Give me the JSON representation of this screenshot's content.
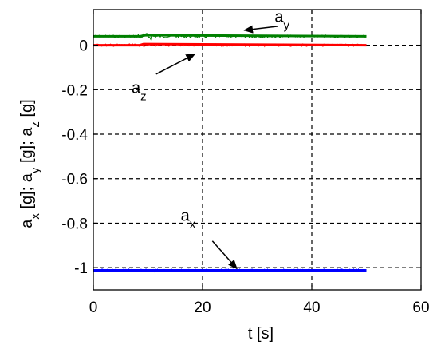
{
  "chart_data": {
    "type": "line",
    "title": "",
    "xlabel": "t [s]",
    "ylabel": {
      "parts": [
        {
          "base": "a",
          "sub": "x",
          "unit": " [g];  "
        },
        {
          "base": "a",
          "sub": "y",
          "unit": " [g];  "
        },
        {
          "base": "a",
          "sub": "z",
          "unit": " [g]"
        }
      ]
    },
    "xlim": [
      0,
      60
    ],
    "ylim": [
      -1.1,
      0.16
    ],
    "xticks": [
      0,
      20,
      40,
      60
    ],
    "yticks": [
      -1,
      -0.8,
      -0.6,
      -0.4,
      -0.2,
      0
    ],
    "xtick_labels": [
      "0",
      "20",
      "40",
      "60"
    ],
    "ytick_labels": [
      "-1",
      "-0.8",
      "-0.6",
      "-0.4",
      "-0.2",
      "0"
    ],
    "grid": true,
    "grid_style": "dashed",
    "series": [
      {
        "id": "ay",
        "color": "#008000",
        "x": [
          0,
          8.5,
          9.5,
          50
        ],
        "y": [
          0.04,
          0.04,
          0.045,
          0.04
        ]
      },
      {
        "id": "az",
        "color": "#ff0000",
        "x": [
          0,
          8.5,
          9.2,
          50
        ],
        "y": [
          0.0,
          0.0,
          0.005,
          0.0
        ]
      },
      {
        "id": "ax",
        "color": "#0000ff",
        "x": [
          0,
          50
        ],
        "y": [
          -1.012,
          -1.012
        ]
      }
    ],
    "annotations": [
      {
        "id": "ay",
        "base": "a",
        "sub": "y",
        "text_x": 33.2,
        "text_y": 0.105,
        "arrow_from": [
          33.8,
          0.085
        ],
        "arrow_to": [
          27.6,
          0.067
        ]
      },
      {
        "id": "az",
        "base": "a",
        "sub": "z",
        "text_x": 7,
        "text_y": -0.215,
        "arrow_from": [
          11.5,
          -0.13
        ],
        "arrow_to": [
          18.6,
          -0.04
        ]
      },
      {
        "id": "ax",
        "base": "a",
        "sub": "x",
        "text_x": 16,
        "text_y": -0.79,
        "arrow_from": [
          21.8,
          -0.88
        ],
        "arrow_to": [
          26.3,
          -1.005
        ]
      }
    ]
  }
}
